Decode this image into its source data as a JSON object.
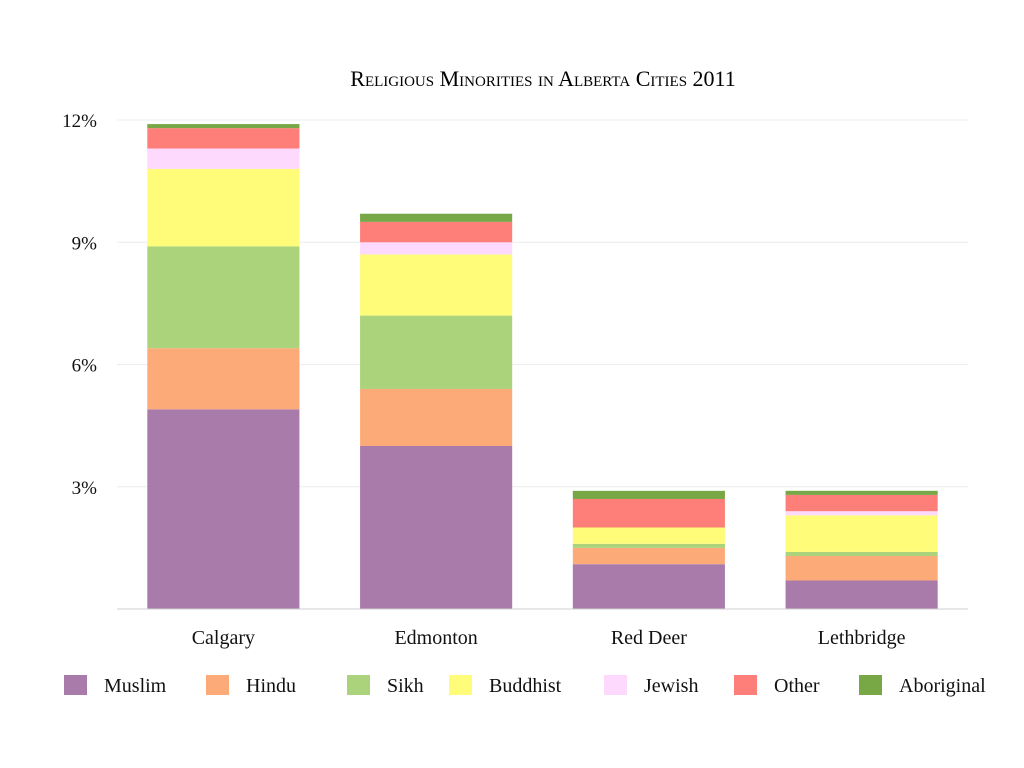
{
  "chart_data": {
    "type": "bar",
    "stacked": true,
    "title": "Religious Minorities in Alberta Cities 2011",
    "xlabel": "",
    "ylabel": "",
    "ylim": [
      0,
      12
    ],
    "yticks": [
      3,
      6,
      9,
      12
    ],
    "ytick_labels": [
      "3%",
      "6%",
      "9%",
      "12%"
    ],
    "grid": true,
    "legend_position": "bottom",
    "categories": [
      "Calgary",
      "Edmonton",
      "Red Deer",
      "Lethbridge"
    ],
    "series": [
      {
        "name": "Muslim",
        "color": "#a87bab",
        "values": [
          4.9,
          4.0,
          1.1,
          0.7
        ]
      },
      {
        "name": "Hindu",
        "color": "#fdaa79",
        "values": [
          1.5,
          1.4,
          0.4,
          0.6
        ]
      },
      {
        "name": "Sikh",
        "color": "#abd37c",
        "values": [
          2.5,
          1.8,
          0.1,
          0.1
        ]
      },
      {
        "name": "Buddhist",
        "color": "#fefc78",
        "values": [
          1.9,
          1.5,
          0.4,
          0.9
        ]
      },
      {
        "name": "Jewish",
        "color": "#fdd9fd",
        "values": [
          0.5,
          0.3,
          0.0,
          0.1
        ]
      },
      {
        "name": "Other",
        "color": "#fe7f79",
        "values": [
          0.5,
          0.5,
          0.7,
          0.4
        ]
      },
      {
        "name": "Aboriginal",
        "color": "#78a745",
        "values": [
          0.1,
          0.2,
          0.2,
          0.1
        ]
      }
    ]
  }
}
